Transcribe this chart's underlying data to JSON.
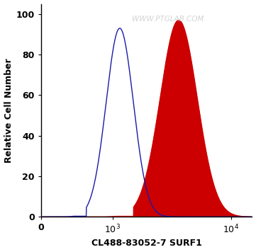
{
  "title": "",
  "xlabel": "CL488-83052-7 SURF1",
  "ylabel": "Relative Cell Number",
  "watermark": "WWW.PTGLAB.COM",
  "ylim": [
    0,
    105
  ],
  "background_color": "#ffffff",
  "blue_color": "#1a1aaa",
  "red_color": "#cc0000",
  "blue_peak_x": 1150,
  "blue_peak_y": 93,
  "blue_sigma": 0.115,
  "red_peak_x": 3600,
  "red_peak_y": 97,
  "red_sigma": 0.155,
  "x_min": 250,
  "x_max": 15000
}
